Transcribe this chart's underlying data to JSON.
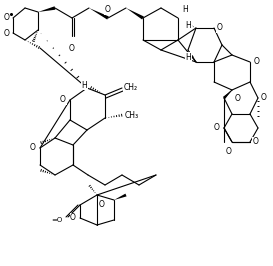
{
  "background": "#ffffff",
  "line_color": "#000000",
  "line_width": 0.8,
  "figsize": [
    2.73,
    2.66
  ],
  "dpi": 100,
  "font_size": 5.5,
  "xlim": [
    0,
    273
  ],
  "ylim": [
    0,
    266
  ]
}
